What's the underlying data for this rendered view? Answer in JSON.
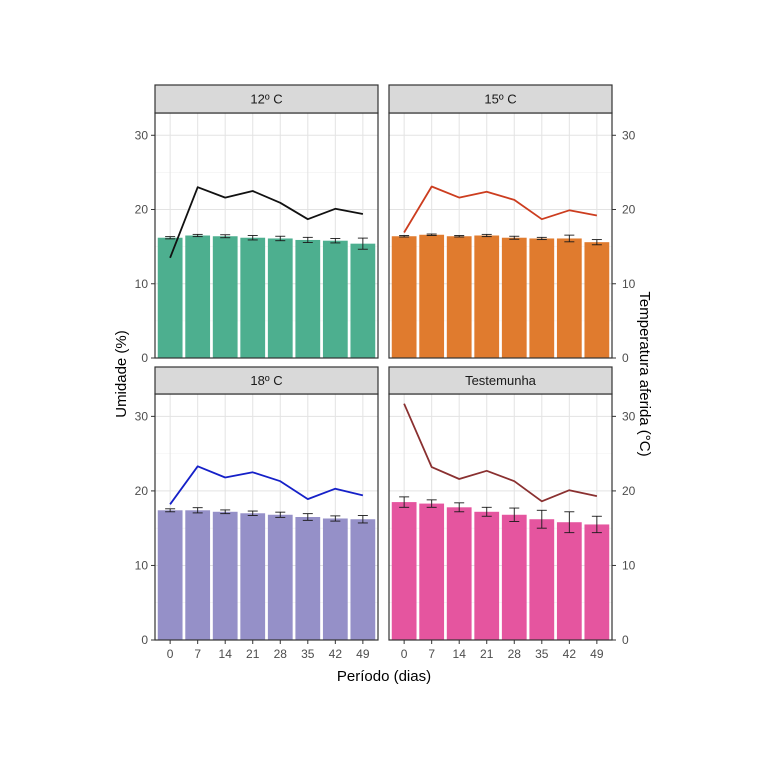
{
  "chart_data": {
    "type": "bar",
    "layout": "facet-grid 2x2, bars with error bars plus overlaid temperature line",
    "xlabel": "Período (dias)",
    "ylabel": "Umidade (%)",
    "ylabel_right": "Temperatura aferida (°C)",
    "x_ticks": [
      "0",
      "7",
      "14",
      "21",
      "28",
      "35",
      "42",
      "49"
    ],
    "ylim": [
      0,
      33
    ],
    "y_ticks": [
      0,
      10,
      20,
      30
    ],
    "panels": [
      {
        "label": "12º C",
        "bar_color": "#4daf8f",
        "line_color": "#111111",
        "humidity": [
          16.2,
          16.5,
          16.4,
          16.2,
          16.1,
          15.9,
          15.8,
          15.4
        ],
        "error": [
          0.15,
          0.15,
          0.2,
          0.3,
          0.3,
          0.35,
          0.3,
          0.75
        ],
        "temperature": [
          13.5,
          23.0,
          21.6,
          22.5,
          20.9,
          18.7,
          20.1,
          19.4
        ]
      },
      {
        "label": "15º C",
        "bar_color": "#e07b2e",
        "line_color": "#cc3d1f",
        "humidity": [
          16.4,
          16.6,
          16.4,
          16.5,
          16.2,
          16.1,
          16.1,
          15.6
        ],
        "error": [
          0.1,
          0.1,
          0.1,
          0.15,
          0.2,
          0.15,
          0.45,
          0.35
        ],
        "temperature": [
          16.9,
          23.1,
          21.6,
          22.4,
          21.3,
          18.7,
          19.9,
          19.2
        ]
      },
      {
        "label": "18º C",
        "bar_color": "#9590c8",
        "line_color": "#1520c8",
        "humidity": [
          17.4,
          17.4,
          17.2,
          17.0,
          16.8,
          16.5,
          16.3,
          16.2
        ],
        "error": [
          0.2,
          0.35,
          0.25,
          0.3,
          0.35,
          0.45,
          0.35,
          0.5
        ],
        "temperature": [
          18.2,
          23.3,
          21.8,
          22.5,
          21.3,
          18.9,
          20.3,
          19.4
        ]
      },
      {
        "label": "Testemunha",
        "bar_color": "#e5559f",
        "line_color": "#8a3030",
        "humidity": [
          18.5,
          18.3,
          17.8,
          17.2,
          16.8,
          16.2,
          15.8,
          15.5
        ],
        "error": [
          0.7,
          0.5,
          0.6,
          0.6,
          0.9,
          1.2,
          1.4,
          1.1
        ],
        "temperature": [
          31.7,
          23.2,
          21.6,
          22.7,
          21.3,
          18.6,
          20.1,
          19.3
        ]
      }
    ]
  }
}
